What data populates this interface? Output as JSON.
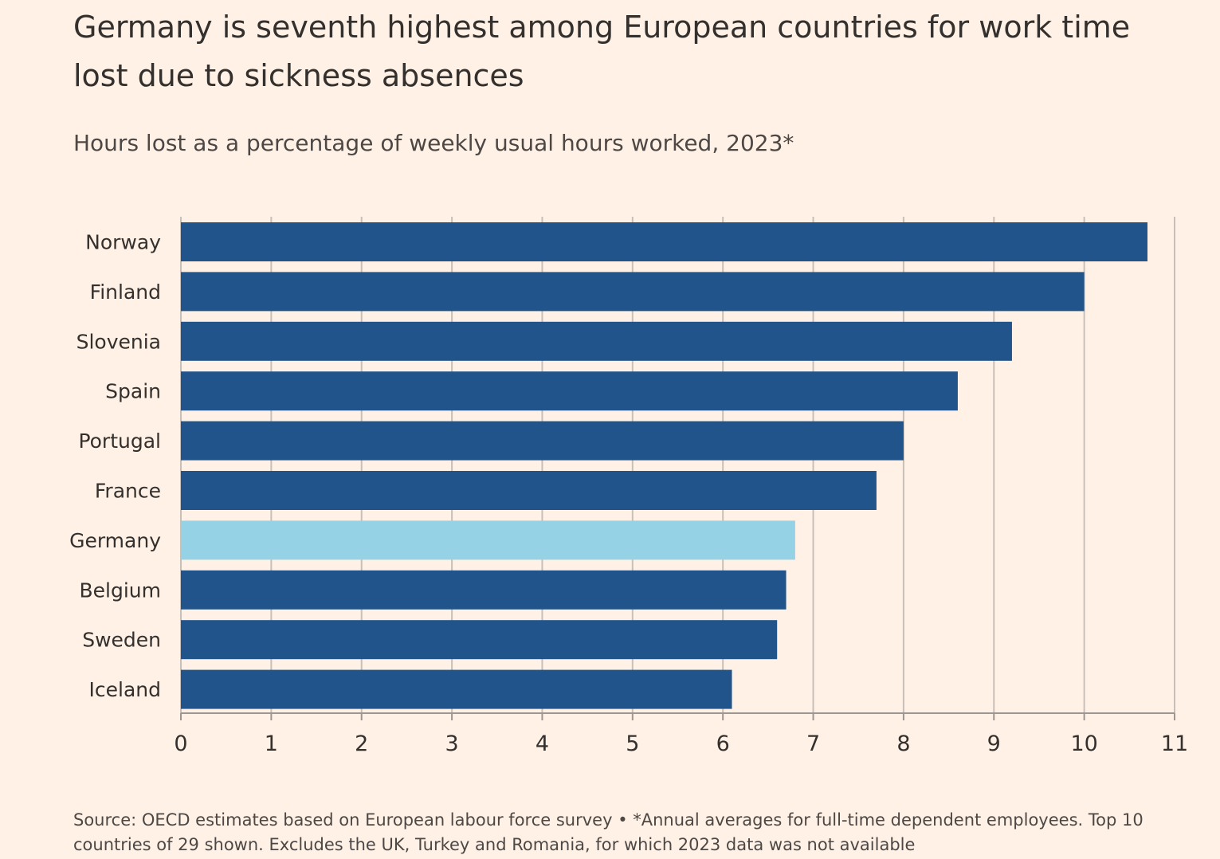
{
  "header": {
    "title": "Germany is seventh highest among European countries for work time lost due to sickness absences",
    "subtitle": "Hours lost as a percentage of weekly usual hours worked, 2023*"
  },
  "footer": {
    "source": "Source: OECD estimates based on European labour force survey • *Annual averages for full-time dependent employees. Top 10 countries of 29 shown. Excludes the UK, Turkey and Romania, for which 2023 data was not available"
  },
  "colors": {
    "bar": "#20548b",
    "highlight": "#96d2e5",
    "grid": "#c8c0b8",
    "axis": "#9e9691",
    "text": "#33302e"
  },
  "chart_data": {
    "type": "bar",
    "orientation": "horizontal",
    "title": "Germany is seventh highest among European countries for work time lost due to sickness absences",
    "subtitle": "Hours lost as a percentage of weekly usual hours worked, 2023*",
    "categories": [
      "Norway",
      "Finland",
      "Slovenia",
      "Spain",
      "Portugal",
      "France",
      "Germany",
      "Belgium",
      "Sweden",
      "Iceland"
    ],
    "values": [
      10.7,
      10.0,
      9.2,
      8.6,
      8.0,
      7.7,
      6.8,
      6.7,
      6.6,
      6.1
    ],
    "highlight": "Germany",
    "xlim": [
      0,
      11
    ],
    "xticks": [
      0,
      1,
      2,
      3,
      4,
      5,
      6,
      7,
      8,
      9,
      10,
      11
    ],
    "grid": true
  }
}
